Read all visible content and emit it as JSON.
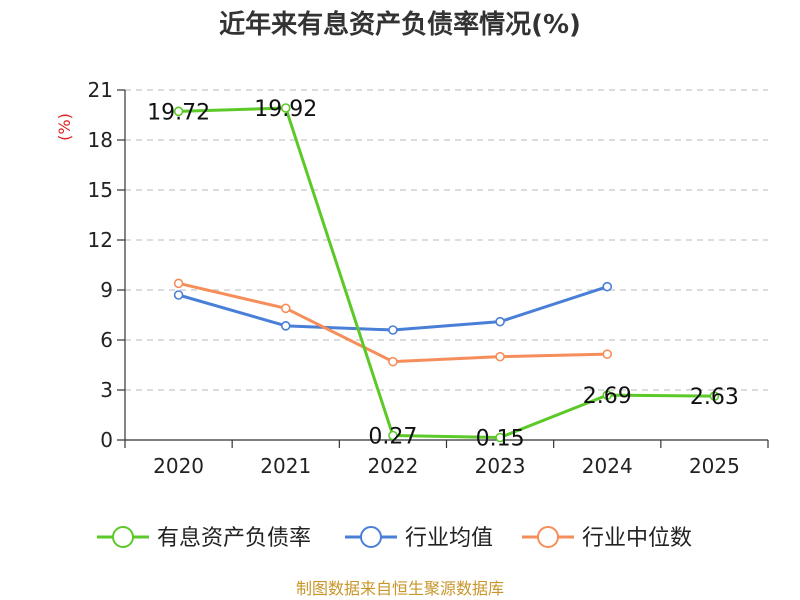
{
  "chart_data": {
    "type": "line",
    "title": "近年来有息资产负债率情况(%)",
    "ylabel": "(%)",
    "xlabel": "",
    "categories": [
      "2020",
      "2021",
      "2022",
      "2023",
      "2024",
      "2025"
    ],
    "yticks": [
      "0",
      "3",
      "6",
      "9",
      "12",
      "15",
      "18",
      "21"
    ],
    "ylim": [
      0,
      21
    ],
    "grid": true,
    "legend_position": "bottom",
    "series": [
      {
        "name": "有息资产负债率",
        "color": "#5cc928",
        "values": [
          19.72,
          19.92,
          0.27,
          0.15,
          2.69,
          2.63
        ],
        "labels": [
          "19.72",
          "19.92",
          "0.27",
          "0.15",
          "2.69",
          "2.63"
        ]
      },
      {
        "name": "行业均值",
        "color": "#4a7fd8",
        "values": [
          8.7,
          6.85,
          6.6,
          7.1,
          9.2,
          null
        ]
      },
      {
        "name": "行业中位数",
        "color": "#f58e5a",
        "values": [
          9.4,
          7.9,
          4.7,
          5.0,
          5.15,
          null
        ]
      }
    ]
  },
  "source_text": "制图数据来自恒生聚源数据库"
}
